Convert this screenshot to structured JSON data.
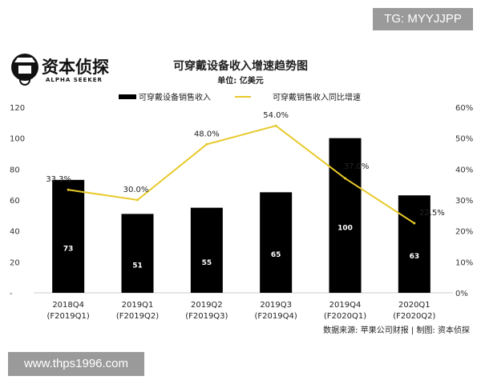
{
  "badge": "TG: MYYJJPP",
  "watermark": "www.thps1996.com",
  "logo": {
    "name": "资本侦探",
    "sub": "ALPHA SEEKER"
  },
  "title": "可穿戴设备收入增速趋势图",
  "unit": "单位: 亿美元",
  "source": "数据来源: 苹果公司财报 | 制图: 资本侦探",
  "colors": {
    "bar": "#000000",
    "line": "#e8c92a"
  },
  "chart_data": {
    "type": "bar+line",
    "categories": [
      "2018Q4\n(F2019Q1)",
      "2019Q1\n(F2019Q2)",
      "2019Q2\n(F2019Q3)",
      "2019Q3\n(F2019Q4)",
      "2019Q4\n(F2020Q1)",
      "2020Q1\n(F2020Q2)"
    ],
    "series": [
      {
        "name": "可穿戴设备销售收入",
        "type": "bar",
        "axis": "left",
        "values": [
          73,
          51,
          55,
          65,
          100,
          63
        ],
        "labels": [
          "73",
          "51",
          "55",
          "65",
          "100",
          "63"
        ]
      },
      {
        "name": "可穿戴销售收入同比增速",
        "type": "line",
        "axis": "right",
        "values": [
          33.3,
          30.0,
          48.0,
          54.0,
          37.0,
          22.5
        ],
        "labels": [
          "33.3%",
          "30.0%",
          "48.0%",
          "54.0%",
          "37.0%",
          "22.5%"
        ]
      }
    ],
    "left_axis": {
      "ylim": [
        0,
        120
      ],
      "ticks": [
        "20",
        "40",
        "60",
        "80",
        "100",
        "120"
      ]
    },
    "right_axis": {
      "ylim": [
        0,
        60
      ],
      "ticks": [
        "0%",
        "10%",
        "20%",
        "30%",
        "40%",
        "50%",
        "60%"
      ]
    },
    "legend": "top"
  }
}
